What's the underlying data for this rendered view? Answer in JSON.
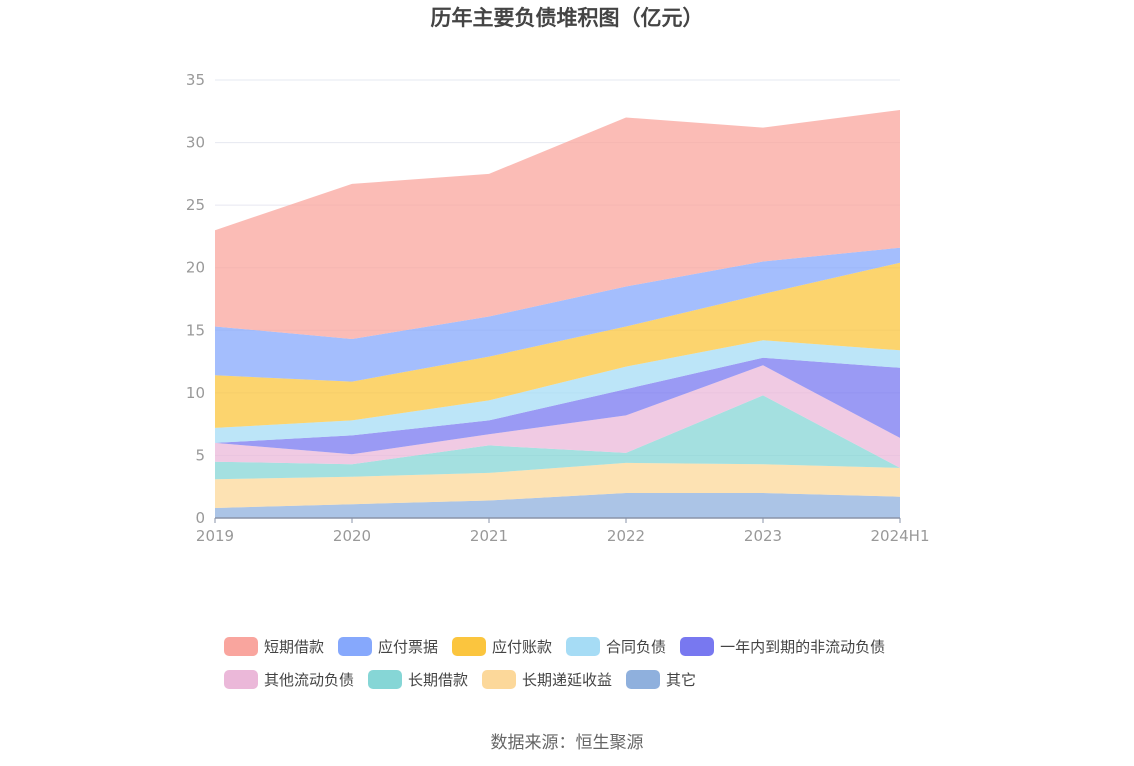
{
  "title": "历年主要负债堆积图（亿元）",
  "source": "数据来源：恒生聚源",
  "chart_data": {
    "type": "area",
    "stacked": true,
    "title": "历年主要负债堆积图（亿元）",
    "xlabel": "",
    "ylabel": "",
    "x": [
      "2019",
      "2020",
      "2021",
      "2022",
      "2023",
      "2024H1"
    ],
    "ylim": [
      0,
      35
    ],
    "yticks": [
      "0",
      "5",
      "10",
      "15",
      "20",
      "25",
      "30",
      "35"
    ],
    "grid": true,
    "legend_position": "bottom",
    "series": [
      {
        "name": "其它",
        "color": "#8fb0dd",
        "values": [
          0.8,
          1.1,
          1.4,
          2.0,
          2.0,
          1.7
        ]
      },
      {
        "name": "长期递延收益",
        "color": "#fcd89a",
        "values": [
          2.3,
          2.2,
          2.2,
          2.4,
          2.3,
          2.3
        ]
      },
      {
        "name": "长期借款",
        "color": "#86d6d6",
        "values": [
          1.4,
          1.0,
          2.2,
          0.8,
          5.5,
          0.0
        ]
      },
      {
        "name": "其他流动负债",
        "color": "#ebb8d9",
        "values": [
          1.5,
          0.8,
          0.9,
          3.0,
          2.4,
          2.4
        ]
      },
      {
        "name": "一年内到期的非流动负债",
        "color": "#7878f0",
        "values": [
          0.0,
          1.5,
          1.1,
          2.1,
          0.6,
          5.6
        ]
      },
      {
        "name": "合同负债",
        "color": "#a6dcf5",
        "values": [
          1.2,
          1.2,
          1.6,
          1.8,
          1.4,
          1.4
        ]
      },
      {
        "name": "应付账款",
        "color": "#fbc53e",
        "values": [
          4.2,
          3.1,
          3.5,
          3.2,
          3.7,
          7.0
        ]
      },
      {
        "name": "应付票据",
        "color": "#86a8fc",
        "values": [
          3.9,
          3.4,
          3.2,
          3.2,
          2.6,
          1.2
        ]
      },
      {
        "name": "短期借款",
        "color": "#f9a59e",
        "values": [
          7.7,
          12.4,
          11.4,
          13.5,
          10.7,
          11.0
        ]
      }
    ]
  },
  "legend": [
    [
      {
        "label": "短期借款",
        "color": "#f9a59e"
      },
      {
        "label": "应付票据",
        "color": "#86a8fc"
      },
      {
        "label": "应付账款",
        "color": "#fbc53e"
      },
      {
        "label": "合同负债",
        "color": "#a6dcf5"
      },
      {
        "label": "一年内到期的非流动负债",
        "color": "#7878f0"
      }
    ],
    [
      {
        "label": "其他流动负债",
        "color": "#ebb8d9"
      },
      {
        "label": "长期借款",
        "color": "#86d6d6"
      },
      {
        "label": "长期递延收益",
        "color": "#fcd89a"
      },
      {
        "label": "其它",
        "color": "#8fb0dd"
      }
    ]
  ]
}
